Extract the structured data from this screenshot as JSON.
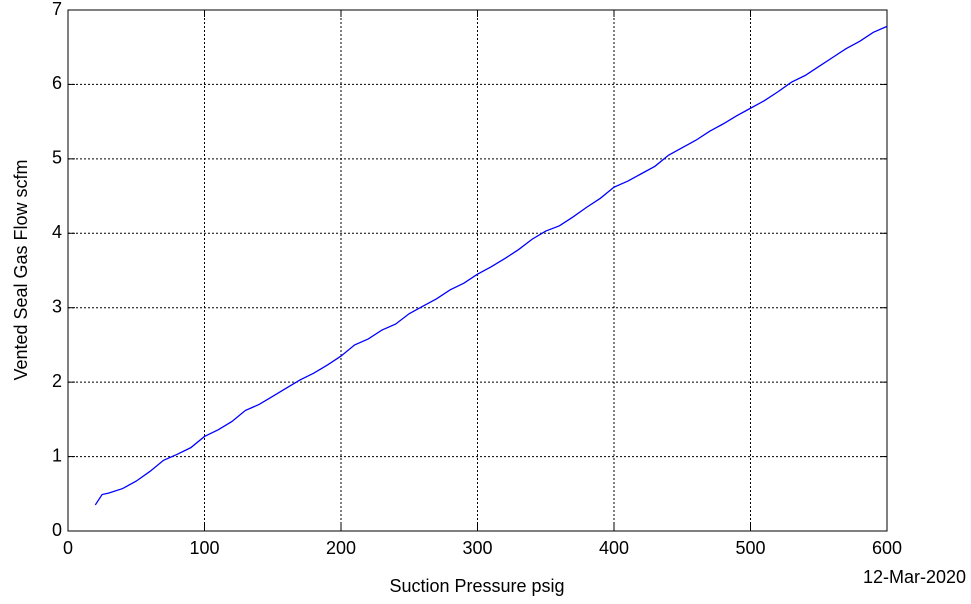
{
  "chart_data": {
    "type": "line",
    "xlabel": "Suction Pressure psig",
    "ylabel": "Vented Seal Gas Flow scfm",
    "annotation": "12-Mar-2020",
    "x": [
      20,
      25,
      30,
      40,
      50,
      60,
      70,
      80,
      90,
      100,
      110,
      120,
      130,
      140,
      150,
      160,
      170,
      180,
      190,
      200,
      210,
      220,
      230,
      240,
      250,
      260,
      270,
      280,
      290,
      300,
      310,
      320,
      330,
      340,
      350,
      360,
      370,
      380,
      390,
      400,
      410,
      420,
      430,
      440,
      450,
      460,
      470,
      480,
      490,
      500,
      510,
      520,
      530,
      540,
      550,
      560,
      570,
      580,
      590,
      600
    ],
    "series": [
      {
        "color": "#0000ff",
        "values": [
          0.35,
          0.49,
          0.51,
          0.57,
          0.67,
          0.8,
          0.95,
          1.03,
          1.12,
          1.27,
          1.36,
          1.47,
          1.62,
          1.7,
          1.81,
          1.92,
          2.03,
          2.12,
          2.23,
          2.35,
          2.5,
          2.58,
          2.7,
          2.78,
          2.92,
          3.02,
          3.12,
          3.24,
          3.33,
          3.45,
          3.55,
          3.66,
          3.78,
          3.92,
          4.03,
          4.1,
          4.22,
          4.35,
          4.47,
          4.62,
          4.7,
          4.8,
          4.9,
          5.05,
          5.15,
          5.25,
          5.37,
          5.47,
          5.58,
          5.68,
          5.78,
          5.9,
          6.03,
          6.12,
          6.24,
          6.36,
          6.48,
          6.58,
          6.7,
          6.78
        ]
      }
    ],
    "xlim": [
      0,
      600
    ],
    "xticks": [
      0,
      100,
      200,
      300,
      400,
      500,
      600
    ],
    "ylim": [
      0,
      7
    ],
    "yticks": [
      0,
      1,
      2,
      3,
      4,
      5,
      6,
      7
    ],
    "grid": true
  }
}
